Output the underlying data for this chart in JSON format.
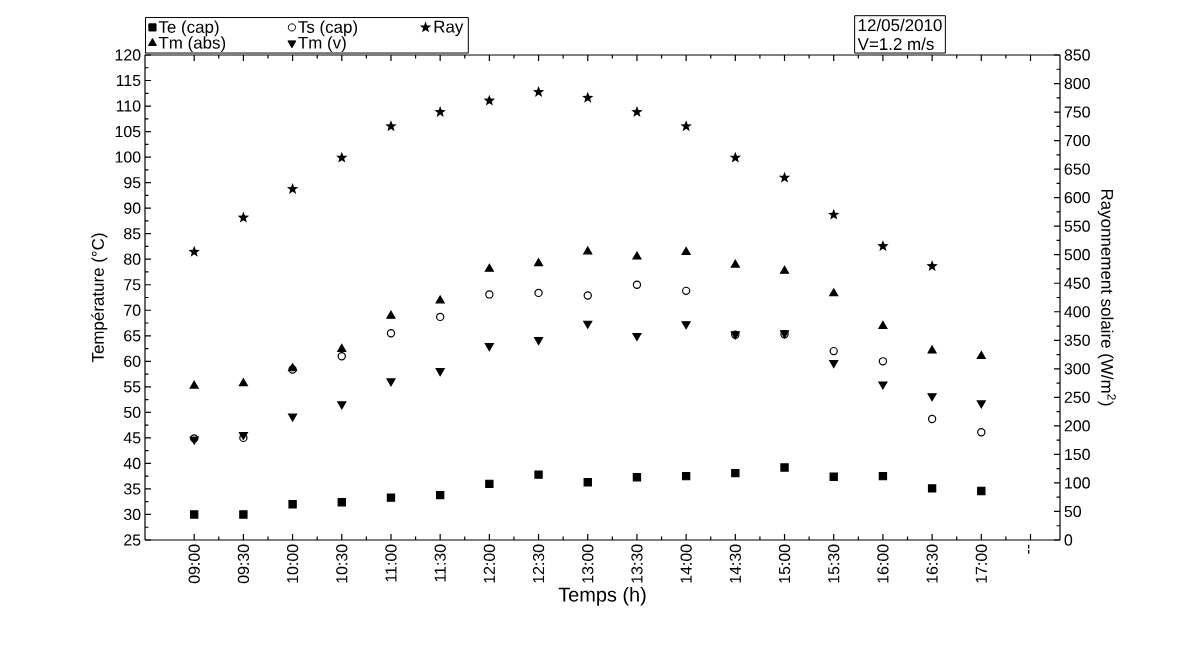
{
  "chart_data": {
    "type": "scatter",
    "xlabel": "Temps (h)",
    "ylabel": "Température (°C)",
    "y2label": "Rayonnement solaire (W/m$^{2}$)",
    "categories": [
      "09:00",
      "09:30",
      "10:00",
      "10:30",
      "11:00",
      "11:30",
      "12:00",
      "12:30",
      "13:00",
      "13:30",
      "14:00",
      "14:30",
      "15:00",
      "15:30",
      "16:00",
      "16:30",
      "17:00",
      "--"
    ],
    "series": [
      {
        "name": "Te (cap)",
        "color": "#000000",
        "marker": "square",
        "values": [
          30.0,
          30.0,
          32.0,
          32.4,
          33.3,
          33.8,
          36.0,
          37.8,
          36.3,
          37.3,
          37.5,
          38.1,
          39.2,
          37.4,
          37.5,
          35.1,
          34.6,
          null
        ]
      },
      {
        "name": "Ts (cap)",
        "color": "#000000",
        "marker": "circle-open",
        "values": [
          44.9,
          45.0,
          58.4,
          61.0,
          65.5,
          68.7,
          73.1,
          73.4,
          72.9,
          75.0,
          73.8,
          65.2,
          65.3,
          62.0,
          60.0,
          48.7,
          46.1,
          null
        ]
      },
      {
        "name": "Ray",
        "color": "#000000",
        "marker": "star",
        "axis": "y2",
        "values": [
          505,
          565,
          615,
          670,
          725,
          750,
          770,
          785,
          775,
          750,
          725,
          670,
          635,
          570,
          515,
          480,
          null,
          null
        ]
      },
      {
        "name": "Tm (abs)",
        "color": "#000000",
        "marker": "triangle",
        "values": [
          55.2,
          55.7,
          58.6,
          62.4,
          68.9,
          71.9,
          78.1,
          79.2,
          81.5,
          80.5,
          81.4,
          78.9,
          77.7,
          73.3,
          66.9,
          62.1,
          61.0,
          null
        ]
      },
      {
        "name": "Tm (v)",
        "color": "#000000",
        "marker": "triangle-down",
        "values": [
          44.7,
          45.6,
          49.2,
          51.6,
          56.1,
          58.1,
          63.0,
          64.2,
          67.4,
          65.0,
          67.3,
          65.3,
          65.5,
          59.7,
          55.5,
          53.2,
          51.8,
          null
        ]
      }
    ],
    "ylim": [
      25,
      120
    ],
    "yticks": [
      25,
      30,
      35,
      40,
      45,
      50,
      55,
      60,
      65,
      70,
      75,
      80,
      85,
      90,
      95,
      100,
      105,
      110,
      115,
      120
    ],
    "y2lim": [
      0,
      850
    ],
    "y2ticks": [
      0,
      50,
      100,
      150,
      200,
      250,
      300,
      350,
      400,
      450,
      500,
      550,
      600,
      650,
      700,
      750,
      800,
      850
    ],
    "legend": "top",
    "grid": false,
    "annotations": [
      "12/05/2010",
      "V=1.2 m/s"
    ]
  }
}
